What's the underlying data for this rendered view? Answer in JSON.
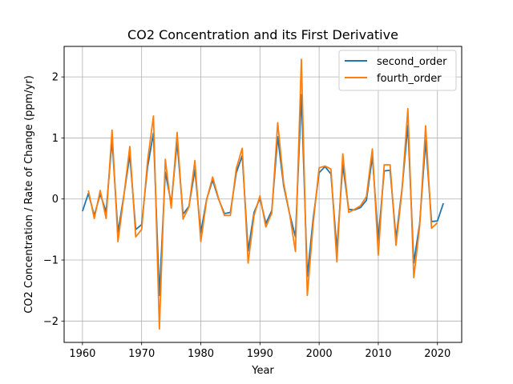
{
  "chart_data": {
    "type": "line",
    "title": "CO2 Concentration and its First Derivative",
    "xlabel": "Year",
    "ylabel": "CO2 Concentration / Rate of Change (ppm/yr)",
    "xlim": [
      1956.9,
      2024.1
    ],
    "ylim": [
      -2.35,
      2.5
    ],
    "xticks": [
      1960,
      1970,
      1980,
      1990,
      2000,
      2010,
      2020
    ],
    "yticks": [
      -2,
      -1,
      0,
      1,
      2
    ],
    "grid": true,
    "legend_position": "top-right",
    "x": [
      1960,
      1961,
      1962,
      1963,
      1964,
      1965,
      1966,
      1967,
      1968,
      1969,
      1970,
      1971,
      1972,
      1973,
      1974,
      1975,
      1976,
      1977,
      1978,
      1979,
      1980,
      1981,
      1982,
      1983,
      1984,
      1985,
      1986,
      1987,
      1988,
      1989,
      1990,
      1991,
      1992,
      1993,
      1994,
      1995,
      1996,
      1997,
      1998,
      1999,
      2000,
      2001,
      2002,
      2003,
      2004,
      2005,
      2006,
      2007,
      2008,
      2009,
      2010,
      2011,
      2012,
      2013,
      2014,
      2015,
      2016,
      2017,
      2018,
      2019,
      2020,
      2021
    ],
    "series": [
      {
        "name": "second_order",
        "color": "#1f77b4",
        "values": [
          -0.2,
          0.09,
          -0.27,
          0.08,
          -0.21,
          0.97,
          -0.55,
          0.06,
          0.72,
          -0.5,
          -0.42,
          0.52,
          1.08,
          -1.58,
          0.44,
          -0.07,
          0.93,
          -0.25,
          -0.12,
          0.48,
          -0.55,
          0.0,
          0.31,
          0.0,
          -0.24,
          -0.22,
          0.43,
          0.71,
          -0.85,
          -0.22,
          0.01,
          -0.4,
          -0.19,
          1.02,
          0.22,
          -0.24,
          -0.62,
          1.71,
          -1.27,
          -0.32,
          0.43,
          0.53,
          0.41,
          -0.83,
          0.56,
          -0.17,
          -0.18,
          -0.14,
          -0.02,
          0.7,
          -0.67,
          0.46,
          0.47,
          -0.65,
          0.15,
          1.21,
          -1.05,
          -0.4,
          0.96,
          -0.37,
          -0.36,
          -0.07
        ]
      },
      {
        "name": "fourth_order",
        "color": "#ff7f0e",
        "values": [
          null,
          0.14,
          -0.32,
          0.14,
          -0.32,
          1.13,
          -0.7,
          0.05,
          0.86,
          -0.62,
          -0.5,
          0.62,
          1.36,
          -2.13,
          0.65,
          -0.15,
          1.09,
          -0.33,
          -0.13,
          0.63,
          -0.7,
          -0.01,
          0.36,
          0.01,
          -0.27,
          -0.27,
          0.5,
          0.83,
          -1.05,
          -0.27,
          0.05,
          -0.46,
          -0.23,
          1.25,
          0.26,
          -0.24,
          -0.86,
          2.29,
          -1.58,
          -0.4,
          0.51,
          0.54,
          0.49,
          -1.03,
          0.74,
          -0.22,
          -0.17,
          -0.11,
          0.04,
          0.82,
          -0.92,
          0.56,
          0.56,
          -0.76,
          0.13,
          1.48,
          -1.29,
          -0.44,
          1.2,
          -0.48,
          -0.39,
          null
        ]
      }
    ]
  }
}
